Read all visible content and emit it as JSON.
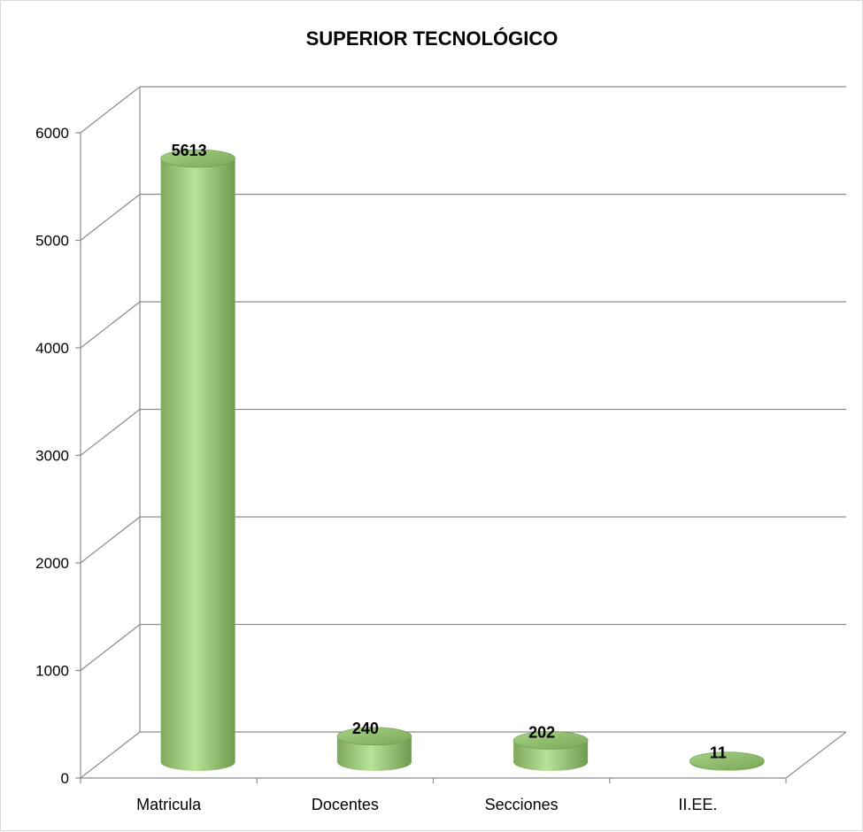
{
  "chart_data": {
    "type": "bar",
    "title": "SUPERIOR TECNOLÓGICO",
    "categories": [
      "Matricula",
      "Docentes",
      "Secciones",
      "II.EE."
    ],
    "values": [
      5613,
      240,
      202,
      11
    ],
    "xlabel": "",
    "ylabel": "",
    "ylim": [
      0,
      6000
    ],
    "yticks": [
      0,
      1000,
      2000,
      3000,
      4000,
      5000,
      6000
    ],
    "grid": true,
    "legend": "none",
    "style": "3d-cylinder",
    "colors": {
      "bar_light": "#b8e297",
      "bar_mid": "#9ccb78",
      "bar_dark": "#6f9a4f",
      "bar_top": "#8fbe6a",
      "grid": "#8c8c8c"
    }
  }
}
